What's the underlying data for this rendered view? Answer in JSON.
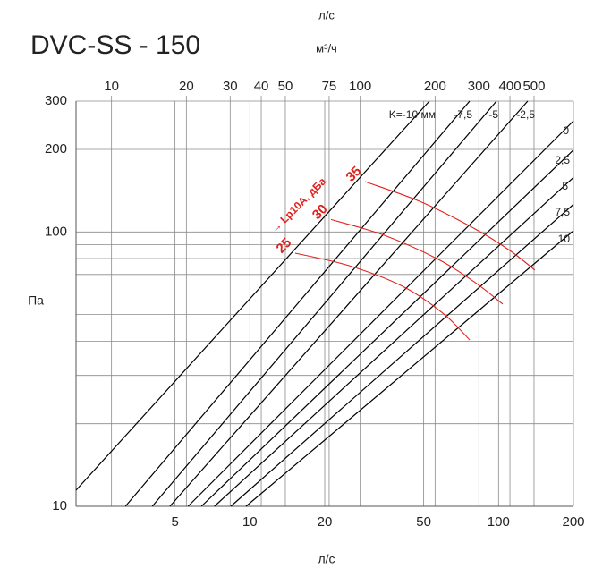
{
  "chart_data": {
    "type": "line",
    "title": "DVC-SS - 150",
    "top_labels": [
      "л/с",
      "м³/ч"
    ],
    "x_label": "л/с",
    "y_label": "Па",
    "xscale": "log",
    "yscale": "log",
    "grid": true,
    "xlim": [
      2,
      200
    ],
    "xticks": [
      5,
      10,
      20,
      50,
      100,
      200
    ],
    "x2lim": [
      7.2,
      720
    ],
    "x2ticks": [
      10,
      20,
      30,
      40,
      50,
      75,
      100,
      200,
      300,
      400,
      500
    ],
    "ylim": [
      10,
      300
    ],
    "yticks": [
      10,
      100,
      200,
      300
    ],
    "y_minor_ticks": [
      20,
      30,
      40,
      50,
      60,
      70,
      80,
      90
    ],
    "annotation": "→ Lp10A, дБа",
    "series": [
      {
        "name": "K=-10 мм",
        "color": "#000000",
        "x": [
          2,
          52.7
        ],
        "values": [
          11.45,
          300
        ]
      },
      {
        "name": "-7,5",
        "color": "#000000",
        "x": [
          3.16,
          76.5
        ],
        "values": [
          10,
          300
        ]
      },
      {
        "name": "-5",
        "color": "#000000",
        "x": [
          4.05,
          98.1
        ],
        "values": [
          10,
          300
        ]
      },
      {
        "name": "-2,5",
        "color": "#000000",
        "x": [
          4.77,
          131
        ],
        "values": [
          10,
          300
        ]
      },
      {
        "name": "0",
        "color": "#000000",
        "x": [
          5.64,
          200
        ],
        "values": [
          10,
          254
        ]
      },
      {
        "name": "2,5",
        "color": "#000000",
        "x": [
          6.38,
          200
        ],
        "values": [
          10,
          199
        ]
      },
      {
        "name": "5",
        "color": "#000000",
        "x": [
          7.2,
          200
        ],
        "values": [
          10,
          158
        ]
      },
      {
        "name": "7,5",
        "color": "#000000",
        "x": [
          8.38,
          200
        ],
        "values": [
          10,
          126
        ]
      },
      {
        "name": "10",
        "color": "#000000",
        "x": [
          9.65,
          200
        ],
        "values": [
          10,
          101
        ]
      },
      {
        "name": "35",
        "color": "#e3211c",
        "x": [
          29.0,
          48.5,
          79.8,
          111,
          140
        ],
        "values": [
          152.6,
          129,
          103,
          85.6,
          72.6
        ]
      },
      {
        "name": "30",
        "color": "#e3211c",
        "x": [
          21.2,
          34.8,
          57.3,
          79.8,
          104
        ],
        "values": [
          111,
          97.2,
          79.4,
          65.8,
          54.6
        ]
      },
      {
        "name": "25",
        "color": "#e3211c",
        "x": [
          15.2,
          25.0,
          41.1,
          59.7,
          76.6
        ],
        "values": [
          83.7,
          75.4,
          63.4,
          50.6,
          40.4
        ]
      }
    ]
  }
}
